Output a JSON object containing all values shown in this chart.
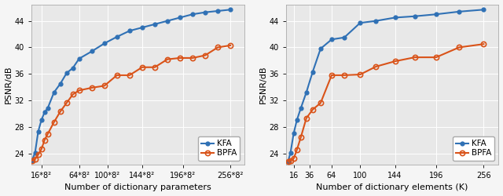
{
  "left": {
    "xlabel": "Number of dictionary parameters",
    "ylabel": "PSNR/dB",
    "xlim_labels": [
      "16*8²",
      "64*8²",
      "100*8²",
      "144*8²",
      "196*8²",
      "256*8²"
    ],
    "xlim_ticks": [
      1024,
      4096,
      6400,
      9216,
      12544,
      16384
    ],
    "xlim": [
      200,
      17500
    ],
    "ylim": [
      22.3,
      46.5
    ],
    "yticks": [
      24,
      28,
      32,
      36,
      40,
      44
    ],
    "kfa_x": [
      256,
      512,
      768,
      1024,
      1280,
      1536,
      2048,
      2560,
      3072,
      3584,
      4096,
      5120,
      6144,
      7168,
      8192,
      9216,
      10240,
      11264,
      12288,
      13312,
      14336,
      15360,
      16384
    ],
    "kfa_y": [
      22.9,
      24.1,
      27.3,
      29.0,
      30.2,
      30.8,
      33.2,
      34.5,
      36.1,
      36.9,
      38.3,
      39.4,
      40.6,
      41.6,
      42.5,
      43.0,
      43.5,
      44.0,
      44.5,
      45.0,
      45.3,
      45.5,
      45.7
    ],
    "bpfa_x": [
      256,
      512,
      768,
      1024,
      1280,
      1536,
      2048,
      2560,
      3072,
      3584,
      4096,
      5120,
      6144,
      7168,
      8192,
      9216,
      10240,
      11264,
      12288,
      13312,
      14336,
      15360,
      16384
    ],
    "bpfa_y": [
      22.9,
      23.1,
      23.8,
      24.6,
      26.0,
      26.9,
      28.7,
      30.3,
      31.6,
      32.9,
      33.5,
      33.9,
      34.2,
      35.8,
      35.8,
      37.0,
      37.0,
      38.2,
      38.4,
      38.4,
      38.8,
      40.0,
      40.3
    ],
    "kfa_color": "#3071b5",
    "bpfa_color": "#d95319",
    "legend_loc": "lower right"
  },
  "right": {
    "xlabel": "Number of dictionary elements (K)",
    "ylabel": "PSNR/dB",
    "xlim": [
      6,
      275
    ],
    "xticks": [
      16,
      36,
      64,
      100,
      144,
      196,
      256
    ],
    "ylim": [
      22.3,
      46.5
    ],
    "yticks": [
      24,
      28,
      32,
      36,
      40,
      44
    ],
    "kfa_x": [
      9,
      12,
      16,
      20,
      25,
      32,
      40,
      50,
      64,
      80,
      100,
      120,
      144,
      169,
      196,
      225,
      256
    ],
    "kfa_y": [
      22.8,
      24.1,
      27.0,
      29.0,
      30.8,
      33.2,
      36.3,
      39.8,
      41.2,
      41.5,
      43.7,
      44.0,
      44.5,
      44.7,
      45.0,
      45.4,
      45.7
    ],
    "bpfa_x": [
      9,
      12,
      16,
      20,
      25,
      32,
      40,
      50,
      64,
      80,
      100,
      120,
      144,
      169,
      196,
      225,
      256
    ],
    "bpfa_y": [
      22.8,
      22.9,
      23.2,
      24.5,
      26.4,
      29.3,
      30.6,
      31.6,
      35.8,
      35.8,
      35.9,
      37.1,
      37.9,
      38.5,
      38.5,
      40.0,
      40.5
    ],
    "kfa_color": "#3071b5",
    "bpfa_color": "#d95319",
    "legend_loc": "lower right"
  },
  "plot_facecolor": "#e8e8e8",
  "fig_facecolor": "#f5f5f5",
  "grid_color": "#ffffff",
  "grid_linewidth": 0.7,
  "line_linewidth": 1.5,
  "marker_size": 4.5,
  "ylabel_fontsize": 8,
  "xlabel_fontsize": 8,
  "tick_fontsize": 7,
  "legend_fontsize": 7.5
}
